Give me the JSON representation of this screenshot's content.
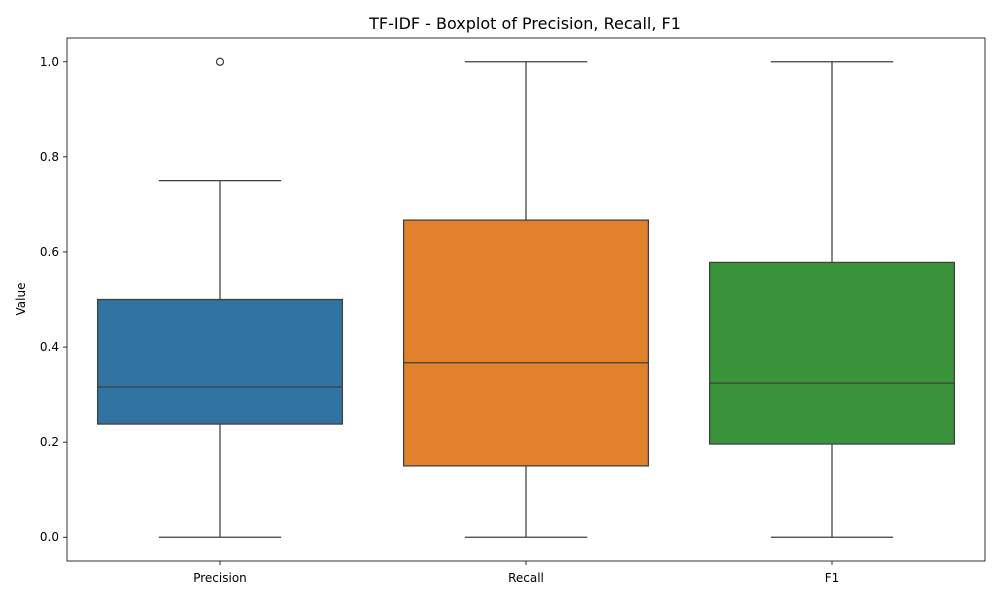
{
  "chart_data": {
    "type": "boxplot",
    "title": "TF-IDF - Boxplot of Precision, Recall, F1",
    "xlabel": "",
    "ylabel": "Value",
    "ylim": [
      -0.05,
      1.05
    ],
    "yticks": [
      0.0,
      0.2,
      0.4,
      0.6,
      0.8,
      1.0
    ],
    "ytick_labels": [
      "0.0",
      "0.2",
      "0.4",
      "0.6",
      "0.8",
      "1.0"
    ],
    "grid": false,
    "legend": "none",
    "categories": [
      "Precision",
      "Recall",
      "F1"
    ],
    "boxes": [
      {
        "category": "Precision",
        "whisker_low": 0.0,
        "q1": 0.238,
        "median": 0.316,
        "q3": 0.5,
        "whisker_high": 0.75,
        "outliers": [
          1.0
        ],
        "color": "#3274a1"
      },
      {
        "category": "Recall",
        "whisker_low": 0.0,
        "q1": 0.15,
        "median": 0.367,
        "q3": 0.667,
        "whisker_high": 1.0,
        "outliers": [],
        "color": "#e1812c"
      },
      {
        "category": "F1",
        "whisker_low": 0.0,
        "q1": 0.196,
        "median": 0.324,
        "q3": 0.578,
        "whisker_high": 1.0,
        "outliers": [],
        "color": "#3a923a"
      }
    ],
    "line_color": "#3f3f3f"
  }
}
